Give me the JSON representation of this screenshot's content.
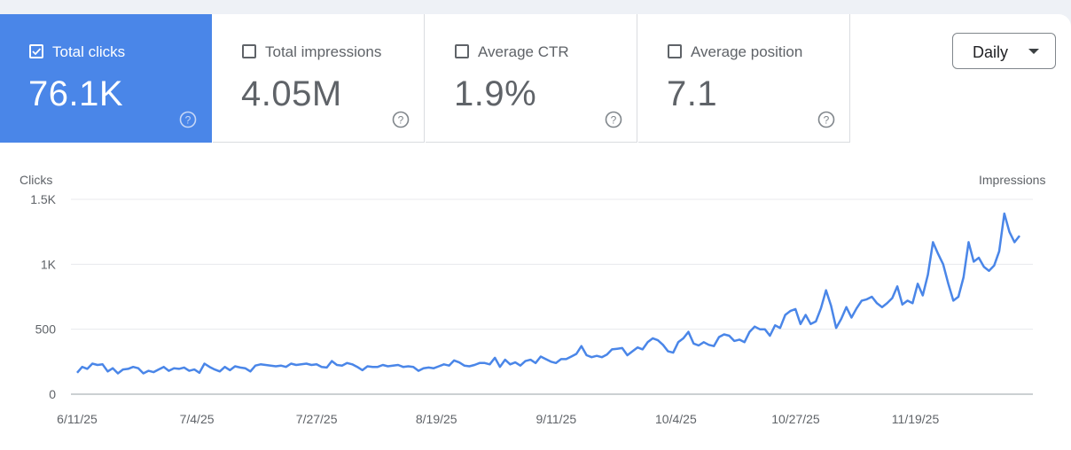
{
  "metrics": [
    {
      "label": "Total clicks",
      "value": "76.1K",
      "checked": true
    },
    {
      "label": "Total impressions",
      "value": "4.05M",
      "checked": false
    },
    {
      "label": "Average CTR",
      "value": "1.9%",
      "checked": false
    },
    {
      "label": "Average position",
      "value": "7.1",
      "checked": false
    }
  ],
  "period_select": {
    "value": "Daily"
  },
  "icons": {
    "help": "help-circle-icon",
    "dropdown": "caret-down-icon",
    "checkbox": "checkbox-icon"
  },
  "colors": {
    "accent": "#4a86e8",
    "line": "#4a86e8",
    "grid": "#e8eaed"
  },
  "chart_data": {
    "type": "line",
    "left_axis_label": "Clicks",
    "right_axis_label": "Impressions",
    "y_ticks": [
      "1.5K",
      "1K",
      "500",
      "0"
    ],
    "y_tick_values": [
      1500,
      1000,
      500,
      0
    ],
    "ylim": [
      0,
      1500
    ],
    "x_tick_labels": [
      "6/11/25",
      "7/4/25",
      "7/27/25",
      "8/19/25",
      "9/11/25",
      "10/4/25",
      "10/27/25",
      "11/19/25"
    ],
    "x_start": "6/11/25",
    "x_end": "12/9/25",
    "grid": true,
    "series": [
      {
        "name": "Clicks",
        "values": [
          165,
          210,
          195,
          235,
          225,
          230,
          175,
          200,
          160,
          190,
          195,
          210,
          200,
          160,
          180,
          170,
          190,
          210,
          180,
          200,
          195,
          205,
          180,
          190,
          165,
          235,
          210,
          190,
          175,
          210,
          185,
          215,
          205,
          200,
          175,
          220,
          230,
          225,
          220,
          215,
          220,
          210,
          235,
          225,
          230,
          235,
          225,
          230,
          210,
          205,
          255,
          225,
          220,
          240,
          230,
          210,
          185,
          215,
          210,
          210,
          225,
          215,
          220,
          225,
          210,
          215,
          210,
          180,
          200,
          205,
          200,
          215,
          230,
          220,
          260,
          245,
          220,
          215,
          225,
          240,
          240,
          230,
          280,
          210,
          265,
          230,
          245,
          220,
          255,
          265,
          240,
          290,
          270,
          250,
          240,
          270,
          270,
          290,
          310,
          370,
          300,
          285,
          295,
          285,
          305,
          345,
          350,
          355,
          300,
          330,
          360,
          345,
          400,
          430,
          415,
          380,
          330,
          320,
          400,
          430,
          480,
          390,
          375,
          400,
          380,
          370,
          440,
          460,
          450,
          410,
          420,
          400,
          480,
          520,
          500,
          500,
          450,
          530,
          510,
          610,
          640,
          655,
          540,
          610,
          540,
          560,
          660,
          800,
          680,
          510,
          580,
          670,
          590,
          660,
          720,
          730,
          750,
          700,
          670,
          700,
          740,
          830,
          690,
          720,
          700,
          850,
          760,
          920,
          1170,
          1080,
          1000,
          850,
          720,
          750,
          900,
          1170,
          1020,
          1050,
          980,
          950,
          990,
          1100,
          1390,
          1250,
          1170,
          1220
        ]
      }
    ]
  }
}
